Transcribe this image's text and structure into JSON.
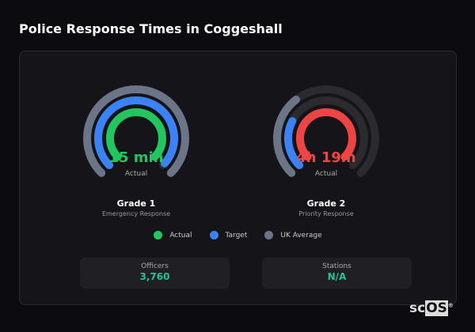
{
  "title": "Police Response Times in Coggeshall",
  "colors": {
    "actual1": "#22c55e",
    "actual2": "#ef4444",
    "target": "#3b82f6",
    "uk": "#6b7587",
    "track": "#2a2a2f"
  },
  "gauges": [
    {
      "value": "15 min",
      "value_sub": "Actual",
      "name": "Grade 1",
      "desc": "Emergency Response",
      "actual": 0.75,
      "target": 0.74,
      "uk": 0.75,
      "actual_color": "#22c55e"
    },
    {
      "value": "4h 19m",
      "value_sub": "Actual",
      "name": "Grade 2",
      "desc": "Priority Response",
      "actual": 0.75,
      "target": 0.2,
      "uk": 0.27,
      "actual_color": "#ef4444"
    }
  ],
  "legend": [
    {
      "label": "Actual",
      "color": "#22c55e"
    },
    {
      "label": "Target",
      "color": "#3b82f6"
    },
    {
      "label": "UK Average",
      "color": "#6b7587"
    }
  ],
  "stats": [
    {
      "label": "Officers",
      "value": "3,760"
    },
    {
      "label": "Stations",
      "value": "N/A"
    }
  ],
  "logo": {
    "text": "scOS",
    "mark": "®"
  }
}
